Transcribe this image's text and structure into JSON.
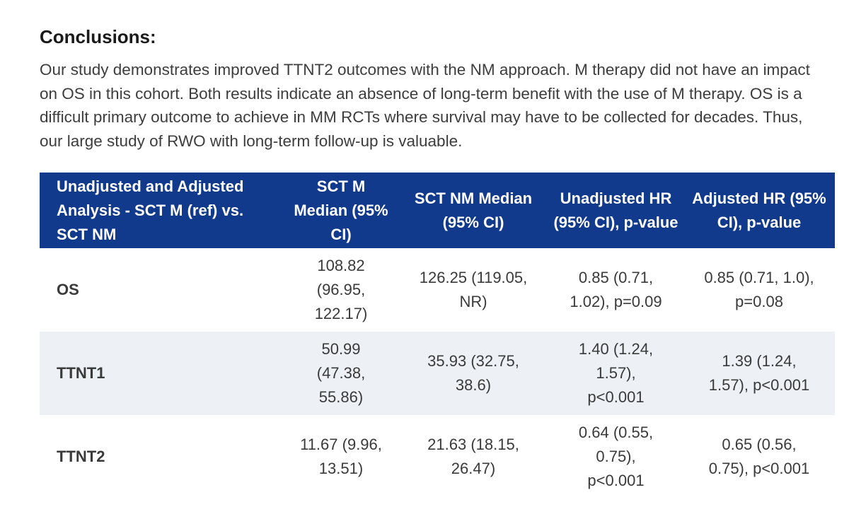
{
  "conclusions": {
    "heading": "Conclusions:",
    "text": "Our study demonstrates improved TTNT2 outcomes with the NM approach. M therapy did not have an impact on OS in this cohort. Both results indicate an absence of long-term benefit with the use of M therapy. OS is a difficult primary outcome to achieve in MM RCTs where survival may have to be collected for decades. Thus, our large study of RWO with long-term follow-up is valuable."
  },
  "table": {
    "header_bg": "#123a8c",
    "shade_color": "#edf1f5",
    "headers": [
      "Unadjusted and Adjusted Analysis - SCT M (ref) vs. SCT NM",
      "SCT M Median (95% CI)",
      "SCT NM Median (95% CI)",
      "Unadjusted HR (95% CI), p-value",
      "Adjusted HR (95% CI), p-value"
    ],
    "rows": [
      {
        "label": "OS",
        "sct_m_median": "108.82 (96.95, 122.17)",
        "sct_nm_median": "126.25 (119.05, NR)",
        "unadjusted_hr": "0.85 (0.71, 1.02), p=0.09",
        "adjusted_hr": "0.85 (0.71, 1.0), p=0.08"
      },
      {
        "label": "TTNT1",
        "sct_m_median": "50.99 (47.38, 55.86)",
        "sct_nm_median": "35.93 (32.75, 38.6)",
        "unadjusted_hr": "1.40 (1.24, 1.57), p<0.001",
        "adjusted_hr": "1.39 (1.24, 1.57), p<0.001"
      },
      {
        "label": "TTNT2",
        "sct_m_median": "11.67 (9.96, 13.51)",
        "sct_nm_median": "21.63 (18.15, 26.47)",
        "unadjusted_hr": "0.64 (0.55, 0.75), p<0.001",
        "adjusted_hr": "0.65 (0.56, 0.75), p<0.001"
      }
    ]
  }
}
